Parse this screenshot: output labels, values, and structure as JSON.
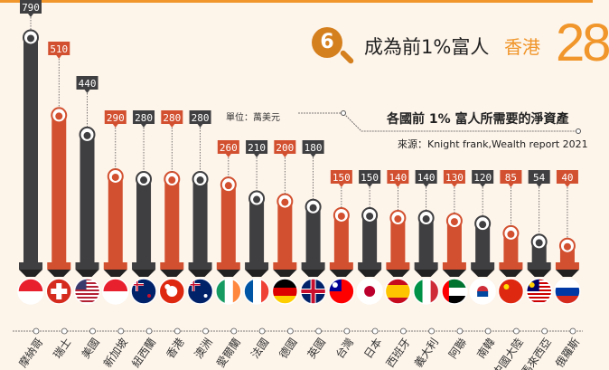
{
  "header": {
    "badge_number": "6",
    "title": "成為前1%富人",
    "city": "香港",
    "rank": "28"
  },
  "chart_data": {
    "type": "bar",
    "title": "各國前 1% 富人所需要的淨資產",
    "unit_label": "單位：萬美元",
    "source": "來源：Knight frank,Wealth report 2021",
    "categories": [
      "摩納哥",
      "瑞士",
      "美國",
      "新加坡",
      "紐西蘭",
      "香港",
      "澳洲",
      "愛爾蘭",
      "法國",
      "德國",
      "英國",
      "台灣",
      "日本",
      "西班牙",
      "義大利",
      "阿聯",
      "南韓",
      "中國大陸",
      "馬來西亞",
      "俄羅斯"
    ],
    "values": [
      790,
      510,
      440,
      290,
      280,
      280,
      280,
      260,
      210,
      200,
      180,
      150,
      150,
      140,
      140,
      130,
      120,
      85,
      54,
      40
    ],
    "ylim": [
      0,
      800
    ],
    "colors": {
      "dark": "#3f3f41",
      "accent": "#d2502f",
      "background": "#fdf4ea",
      "highlight": "#f0962a"
    },
    "icons": [
      "money-bag-icon",
      "flag-icons"
    ]
  }
}
